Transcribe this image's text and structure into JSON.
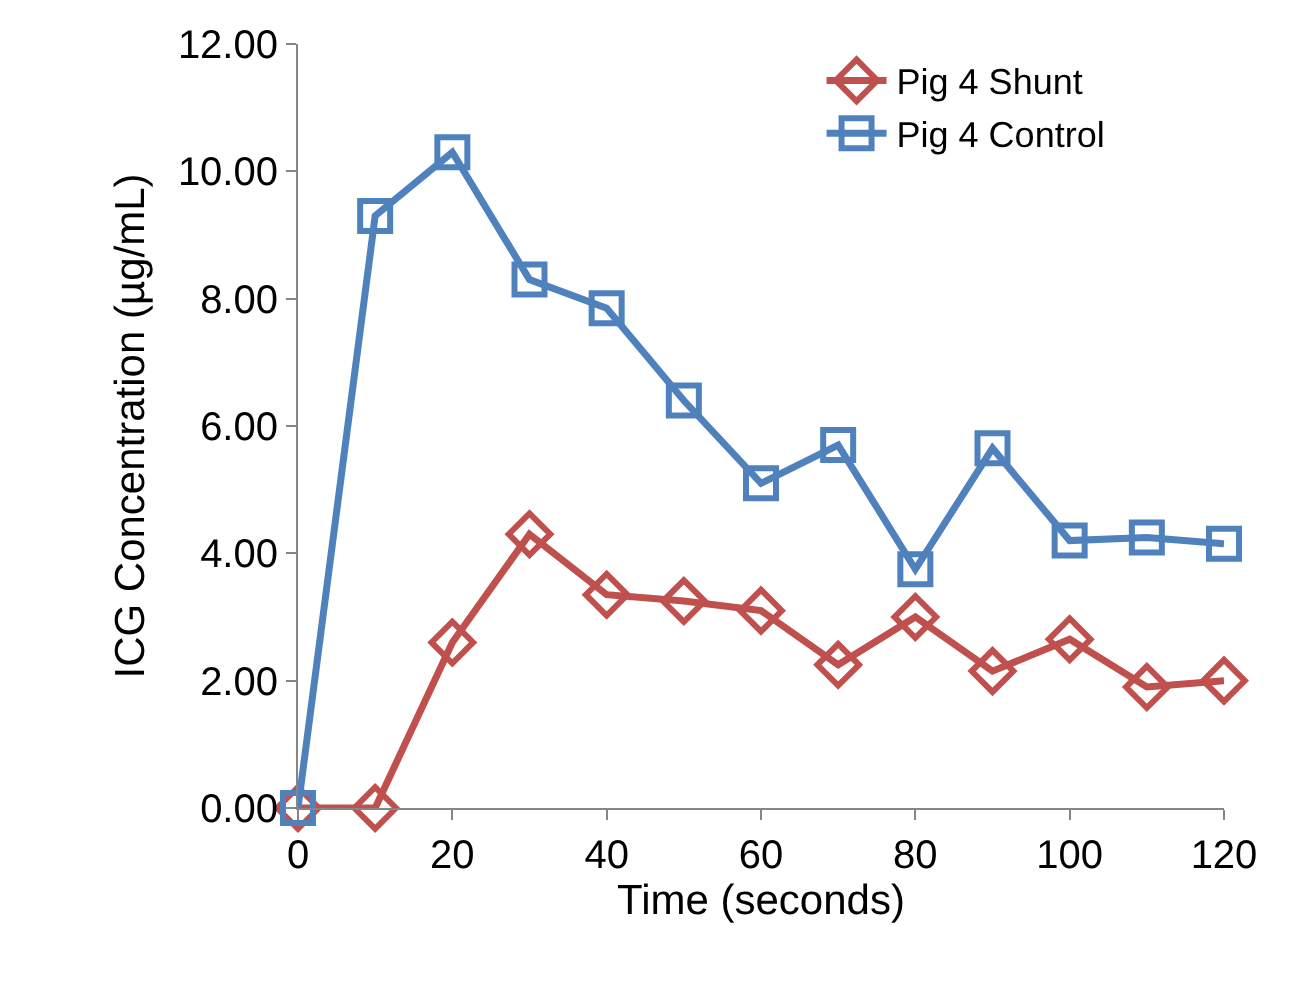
{
  "chart_data": {
    "type": "line",
    "xlabel": "Time (seconds)",
    "ylabel": "ICG Concentration (µg/mL)",
    "x": [
      0,
      10,
      20,
      30,
      40,
      50,
      60,
      70,
      80,
      90,
      100,
      110,
      120
    ],
    "series": [
      {
        "name": "Pig 4 Shunt",
        "color": "#c0504d",
        "marker": "diamond",
        "values": [
          0,
          0,
          2.6,
          4.3,
          3.35,
          3.25,
          3.1,
          2.25,
          3.0,
          2.15,
          2.65,
          1.9,
          2.0
        ]
      },
      {
        "name": "Pig 4 Control",
        "color": "#4f81bd",
        "marker": "square",
        "values": [
          0,
          9.3,
          10.3,
          8.3,
          7.85,
          6.4,
          5.1,
          5.7,
          3.75,
          5.65,
          4.2,
          4.25,
          4.15
        ]
      }
    ],
    "xlim": [
      0,
      120
    ],
    "xticks": [
      0,
      20,
      40,
      60,
      80,
      100,
      120
    ],
    "ylim": [
      0,
      12
    ],
    "yticks": [
      {
        "value": 0,
        "label": "0.00"
      },
      {
        "value": 2,
        "label": "2.00"
      },
      {
        "value": 4,
        "label": "4.00"
      },
      {
        "value": 6,
        "label": "6.00"
      },
      {
        "value": 8,
        "label": "8.00"
      },
      {
        "value": 10,
        "label": "10.00"
      },
      {
        "value": 12,
        "label": "12.00"
      }
    ],
    "legend": "top right",
    "line_style": "solid"
  }
}
